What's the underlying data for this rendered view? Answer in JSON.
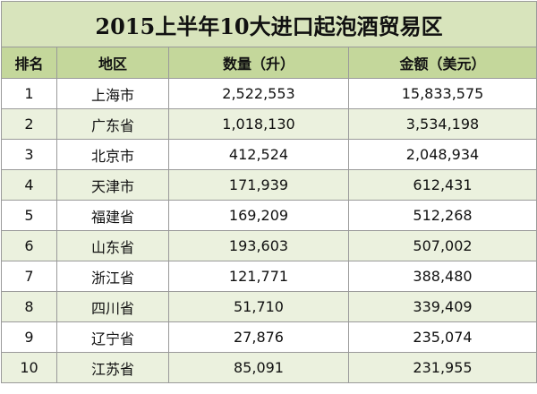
{
  "header": {
    "title": "2015上半年10大进口起泡酒贸易区"
  },
  "table": {
    "columns": [
      "排名",
      "地区",
      "数量（升）",
      "金额（美元）"
    ],
    "rows": [
      [
        "1",
        "上海市",
        "2,522,553",
        "15,833,575"
      ],
      [
        "2",
        "广东省",
        "1,018,130",
        "3,534,198"
      ],
      [
        "3",
        "北京市",
        "412,524",
        "2,048,934"
      ],
      [
        "4",
        "天津市",
        "171,939",
        "612,431"
      ],
      [
        "5",
        "福建省",
        "169,209",
        "512,268"
      ],
      [
        "6",
        "山东省",
        "193,603",
        "507,002"
      ],
      [
        "7",
        "浙江省",
        "121,771",
        "388,480"
      ],
      [
        "8",
        "四川省",
        "51,710",
        "339,409"
      ],
      [
        "9",
        "辽宁省",
        "27,876",
        "235,074"
      ],
      [
        "10",
        "江苏省",
        "85,091",
        "231,955"
      ]
    ]
  }
}
